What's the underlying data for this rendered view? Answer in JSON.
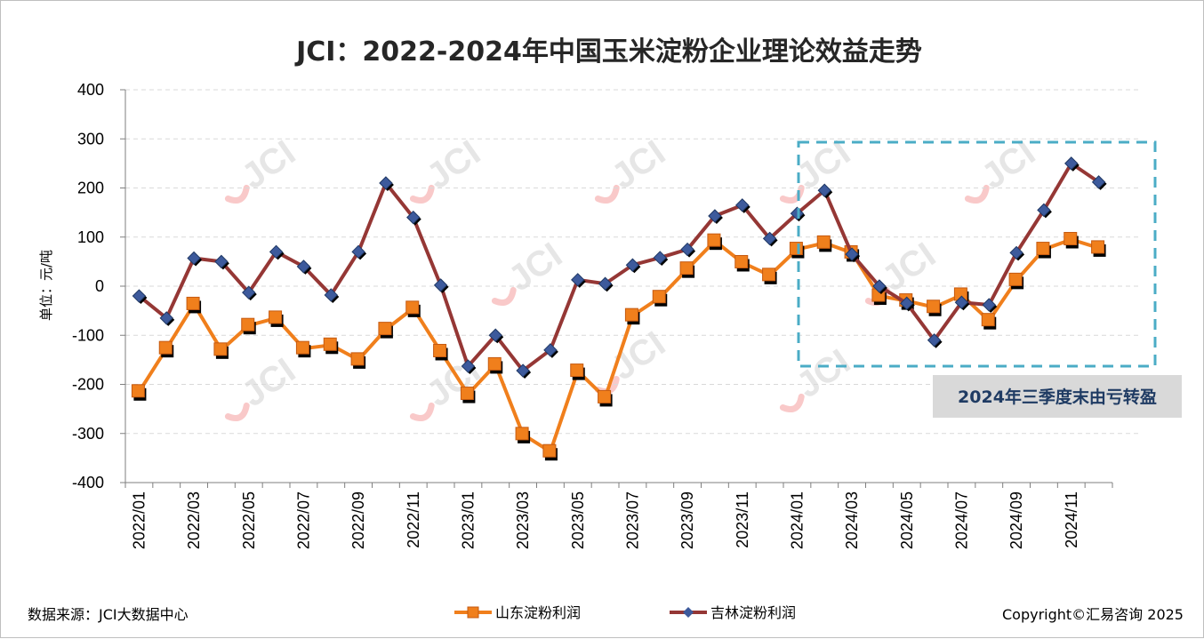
{
  "chart_data": {
    "type": "line",
    "title": "JCI：2022-2024年中国玉米淀粉企业理论效益走势",
    "ylabel": "单位：元/吨",
    "ylim": [
      -400,
      400
    ],
    "yticks": [
      400,
      300,
      200,
      100,
      0,
      -100,
      -200,
      -300,
      -400
    ],
    "x": [
      "2022/01",
      "2022/02",
      "2022/03",
      "2022/04",
      "2022/05",
      "2022/06",
      "2022/07",
      "2022/08",
      "2022/09",
      "2022/10",
      "2022/11",
      "2022/12",
      "2023/01",
      "2023/02",
      "2023/03",
      "2023/04",
      "2023/05",
      "2023/06",
      "2023/07",
      "2023/08",
      "2023/09",
      "2023/10",
      "2023/11",
      "2023/12",
      "2024/01",
      "2024/02",
      "2024/03",
      "2024/04",
      "2024/05",
      "2024/06",
      "2024/07",
      "2024/08",
      "2024/09",
      "2024/10",
      "2024/11",
      "2024/12"
    ],
    "xtick_labels": [
      "2022/01",
      "2022/03",
      "2022/05",
      "2022/07",
      "2022/09",
      "2022/11",
      "2023/01",
      "2023/03",
      "2023/05",
      "2023/07",
      "2023/09",
      "2023/11",
      "2024/01",
      "2024/03",
      "2024/05",
      "2024/07",
      "2024/09",
      "2024/11"
    ],
    "series": [
      {
        "name": "山东淀粉利润",
        "color": "#f07f1c",
        "marker": "square",
        "values": [
          -215,
          -127,
          -37,
          -130,
          -80,
          -65,
          -127,
          -120,
          -150,
          -88,
          -45,
          -133,
          -220,
          -160,
          -302,
          -337,
          -173,
          -227,
          -60,
          -23,
          35,
          92,
          48,
          22,
          75,
          88,
          68,
          -20,
          -30,
          -43,
          -18,
          -70,
          12,
          75,
          95,
          78
        ]
      },
      {
        "name": "吉林淀粉利润",
        "color": "#953735",
        "marker": "diamond",
        "values": [
          -20,
          -65,
          57,
          50,
          -13,
          70,
          40,
          -18,
          70,
          210,
          140,
          2,
          -163,
          -100,
          -172,
          -130,
          13,
          5,
          43,
          58,
          75,
          143,
          165,
          97,
          148,
          195,
          65,
          0,
          -35,
          -110,
          -33,
          -38,
          68,
          155,
          250,
          212
        ]
      }
    ],
    "annotation": "2024年三季度末由亏转盈",
    "source": "数据来源：JCI大数据中心",
    "copyright": "Copyright©汇易咨询 2025",
    "watermark": "JCI",
    "colors": {
      "grid": "#d9d9d9",
      "axis": "#7f7f7f",
      "callout_border": "#4bacc6",
      "callout_bg": "#d9d9d9"
    }
  }
}
